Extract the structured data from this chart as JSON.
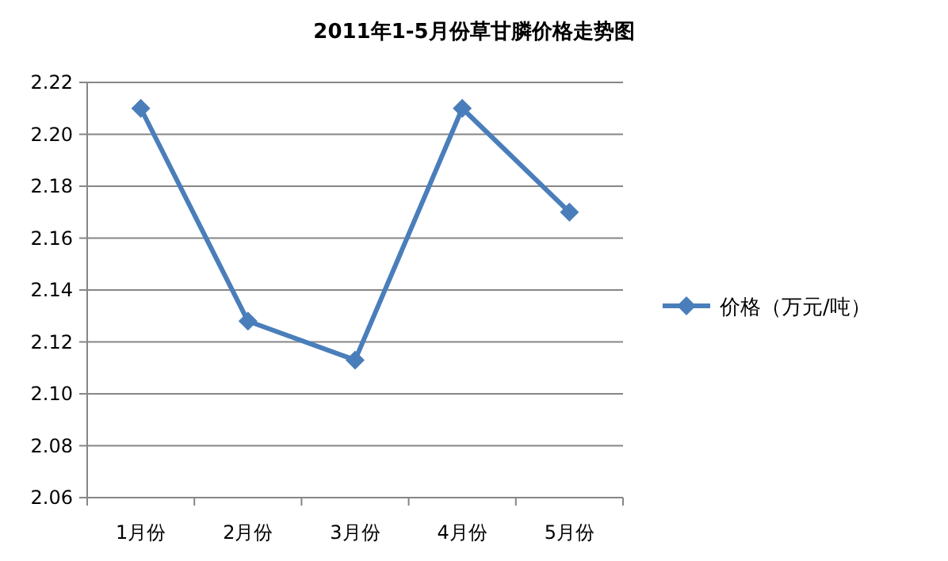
{
  "chart_data": {
    "type": "line",
    "title": "2011年1-5月份草甘膦价格走势图",
    "categories": [
      "1月份",
      "2月份",
      "3月份",
      "4月份",
      "5月份"
    ],
    "series": [
      {
        "name": "价格（万元/吨）",
        "color": "#4a7ebb",
        "values": [
          2.21,
          2.128,
          2.113,
          2.21,
          2.17
        ]
      }
    ],
    "ylim": [
      2.06,
      2.22
    ],
    "yticks": [
      {
        "value": 2.06,
        "label": "2.06"
      },
      {
        "value": 2.08,
        "label": "2.08"
      },
      {
        "value": 2.1,
        "label": "2.10"
      },
      {
        "value": 2.12,
        "label": "2.12"
      },
      {
        "value": 2.14,
        "label": "2.14"
      },
      {
        "value": 2.16,
        "label": "2.16"
      },
      {
        "value": 2.18,
        "label": "2.18"
      },
      {
        "value": 2.2,
        "label": "2.20"
      },
      {
        "value": 2.22,
        "label": "2.22"
      }
    ],
    "grid": "y",
    "legend": "right",
    "marker": "diamond",
    "line_style": "solid"
  }
}
